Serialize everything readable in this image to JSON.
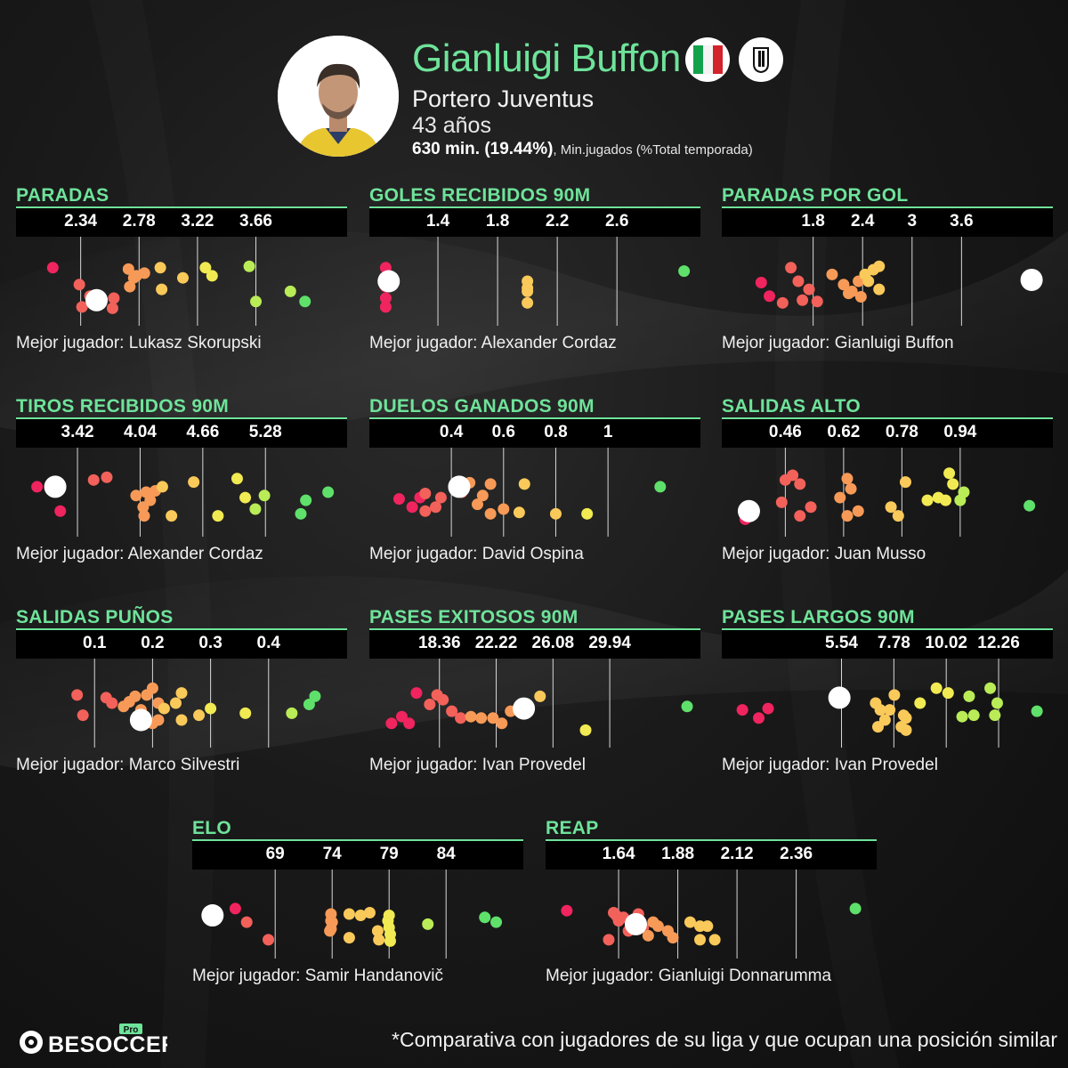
{
  "player": {
    "name": "Gianluigi Buffon",
    "role": "Portero Juventus",
    "age": "43 años",
    "minutes_value": "630 min. (19.44%)",
    "minutes_label": ", Min.jugados (%Total temporada)",
    "nation_icon": "italy-flag-icon",
    "club_icon": "juventus-crest-icon"
  },
  "colors": {
    "accent": "#6ee39a",
    "highlight": "#ffffff",
    "scale": [
      "#f0245e",
      "#f2615a",
      "#f79a57",
      "#f9c95a",
      "#f1ea52",
      "#b9ec56",
      "#5fe06b"
    ]
  },
  "brand": {
    "logo_text": "BESOCCER",
    "logo_tag": "Pro"
  },
  "footnote": "*Comparativa con jugadores de su liga y que ocupan una posición similar",
  "chart_data": [
    {
      "type": "scatter",
      "title": "PARADAS",
      "ticks": [
        "2.34",
        "2.78",
        "3.22",
        "3.66"
      ],
      "tick_values": [
        2.34,
        2.78,
        3.22,
        3.66
      ],
      "xlim": [
        1.92,
        4.28
      ],
      "best_label": "Mejor jugador: Lukasz Skorupski",
      "points": [
        {
          "x": 2.13,
          "y": 0.3
        },
        {
          "x": 2.35,
          "y": 0.88
        },
        {
          "x": 2.33,
          "y": 0.55
        },
        {
          "x": 2.41,
          "y": 0.72
        },
        {
          "x": 2.59,
          "y": 0.75
        },
        {
          "x": 2.58,
          "y": 0.9
        },
        {
          "x": 2.7,
          "y": 0.32
        },
        {
          "x": 2.71,
          "y": 0.58
        },
        {
          "x": 2.76,
          "y": 0.42
        },
        {
          "x": 2.82,
          "y": 0.38
        },
        {
          "x": 2.74,
          "y": 0.45
        },
        {
          "x": 2.94,
          "y": 0.3
        },
        {
          "x": 2.95,
          "y": 0.62
        },
        {
          "x": 3.11,
          "y": 0.45
        },
        {
          "x": 3.28,
          "y": 0.3
        },
        {
          "x": 3.33,
          "y": 0.42
        },
        {
          "x": 3.61,
          "y": 0.28
        },
        {
          "x": 3.66,
          "y": 0.8
        },
        {
          "x": 3.92,
          "y": 0.65
        },
        {
          "x": 4.03,
          "y": 0.8
        }
      ],
      "highlight": {
        "x": 2.46,
        "y": 0.78
      }
    },
    {
      "type": "scatter",
      "title": "GOLES RECIBIDOS 90M",
      "ticks": [
        "1.4",
        "1.8",
        "2.2",
        "2.6"
      ],
      "tick_values": [
        1.4,
        1.8,
        2.2,
        2.6
      ],
      "xlim": [
        1.0,
        3.1
      ],
      "best_label": "Mejor jugador: Alexander Cordaz",
      "points": [
        {
          "x": 1.05,
          "y": 0.3
        },
        {
          "x": 1.05,
          "y": 0.45
        },
        {
          "x": 1.05,
          "y": 0.58
        },
        {
          "x": 1.05,
          "y": 0.75
        },
        {
          "x": 1.05,
          "y": 0.88
        },
        {
          "x": 2.0,
          "y": 0.5
        },
        {
          "x": 2.0,
          "y": 0.65
        },
        {
          "x": 2.0,
          "y": 0.82
        },
        {
          "x": 2.0,
          "y": 0.6
        },
        {
          "x": 3.05,
          "y": 0.35
        }
      ],
      "highlight": {
        "x": 1.07,
        "y": 0.5
      }
    },
    {
      "type": "scatter",
      "title": "PARADAS POR GOL",
      "ticks": [
        "1.8",
        "2.4",
        "3",
        "3.6"
      ],
      "tick_values": [
        1.8,
        2.4,
        3.0,
        3.6
      ],
      "xlim": [
        0.8,
        4.6
      ],
      "best_label": "Mejor jugador: Gianluigi Buffon",
      "points": [
        {
          "x": 1.17,
          "y": 0.52
        },
        {
          "x": 1.27,
          "y": 0.72
        },
        {
          "x": 1.43,
          "y": 0.82
        },
        {
          "x": 1.53,
          "y": 0.3
        },
        {
          "x": 1.62,
          "y": 0.5
        },
        {
          "x": 1.67,
          "y": 0.78
        },
        {
          "x": 1.75,
          "y": 0.62
        },
        {
          "x": 1.85,
          "y": 0.8
        },
        {
          "x": 2.03,
          "y": 0.4
        },
        {
          "x": 2.17,
          "y": 0.55
        },
        {
          "x": 2.23,
          "y": 0.68
        },
        {
          "x": 2.27,
          "y": 0.65
        },
        {
          "x": 2.35,
          "y": 0.5
        },
        {
          "x": 2.38,
          "y": 0.73
        },
        {
          "x": 2.43,
          "y": 0.4
        },
        {
          "x": 2.47,
          "y": 0.5
        },
        {
          "x": 2.53,
          "y": 0.33
        },
        {
          "x": 2.6,
          "y": 0.28
        },
        {
          "x": 2.6,
          "y": 0.62
        }
      ],
      "highlight": {
        "x": 4.45,
        "y": 0.48
      }
    },
    {
      "type": "scatter",
      "title": "TIROS RECIBIDOS 90M",
      "ticks": [
        "3.42",
        "4.04",
        "4.66",
        "5.28"
      ],
      "tick_values": [
        3.42,
        4.04,
        4.66,
        5.28
      ],
      "xlim": [
        2.9,
        6.0
      ],
      "best_label": "Mejor jugador: Alexander Cordaz",
      "points": [
        {
          "x": 3.02,
          "y": 0.42
        },
        {
          "x": 3.22,
          "y": 0.4
        },
        {
          "x": 3.25,
          "y": 0.78
        },
        {
          "x": 3.58,
          "y": 0.32
        },
        {
          "x": 3.71,
          "y": 0.28
        },
        {
          "x": 4.0,
          "y": 0.55
        },
        {
          "x": 4.07,
          "y": 0.72
        },
        {
          "x": 4.1,
          "y": 0.5
        },
        {
          "x": 4.14,
          "y": 0.62
        },
        {
          "x": 4.08,
          "y": 0.85
        },
        {
          "x": 4.19,
          "y": 0.48
        },
        {
          "x": 4.26,
          "y": 0.42
        },
        {
          "x": 4.35,
          "y": 0.85
        },
        {
          "x": 4.57,
          "y": 0.35
        },
        {
          "x": 4.81,
          "y": 0.85
        },
        {
          "x": 5.0,
          "y": 0.3
        },
        {
          "x": 5.08,
          "y": 0.58
        },
        {
          "x": 5.18,
          "y": 0.75
        },
        {
          "x": 5.27,
          "y": 0.55
        },
        {
          "x": 5.68,
          "y": 0.62
        },
        {
          "x": 5.63,
          "y": 0.82
        },
        {
          "x": 5.9,
          "y": 0.5
        }
      ],
      "highlight": {
        "x": 3.2,
        "y": 0.42
      }
    },
    {
      "type": "scatter",
      "title": "DUELOS GANADOS 90M",
      "ticks": [
        "0.4",
        "0.6",
        "0.8",
        "1"
      ],
      "tick_values": [
        0.4,
        0.6,
        0.8,
        1.0
      ],
      "xlim": [
        0.12,
        1.32
      ],
      "best_label": "Mejor jugador: David Ospina",
      "points": [
        {
          "x": 0.2,
          "y": 0.6
        },
        {
          "x": 0.25,
          "y": 0.72
        },
        {
          "x": 0.28,
          "y": 0.58
        },
        {
          "x": 0.3,
          "y": 0.78
        },
        {
          "x": 0.3,
          "y": 0.52
        },
        {
          "x": 0.34,
          "y": 0.72
        },
        {
          "x": 0.36,
          "y": 0.58
        },
        {
          "x": 0.44,
          "y": 0.5
        },
        {
          "x": 0.47,
          "y": 0.36
        },
        {
          "x": 0.5,
          "y": 0.68
        },
        {
          "x": 0.52,
          "y": 0.55
        },
        {
          "x": 0.55,
          "y": 0.82
        },
        {
          "x": 0.6,
          "y": 0.75
        },
        {
          "x": 0.55,
          "y": 0.38
        },
        {
          "x": 0.66,
          "y": 0.8
        },
        {
          "x": 0.68,
          "y": 0.38
        },
        {
          "x": 0.8,
          "y": 0.82
        },
        {
          "x": 0.92,
          "y": 0.82
        },
        {
          "x": 1.2,
          "y": 0.42
        }
      ],
      "highlight": {
        "x": 0.43,
        "y": 0.42
      }
    },
    {
      "type": "scatter",
      "title": "SALIDAS ALTO",
      "ticks": [
        "0.46",
        "0.62",
        "0.78",
        "0.94"
      ],
      "tick_values": [
        0.46,
        0.62,
        0.78,
        0.94
      ],
      "xlim": [
        0.31,
        1.17
      ],
      "best_label": "Mejor jugador: Juan Musso",
      "points": [
        {
          "x": 0.35,
          "y": 0.9
        },
        {
          "x": 0.46,
          "y": 0.32
        },
        {
          "x": 0.48,
          "y": 0.25
        },
        {
          "x": 0.5,
          "y": 0.38
        },
        {
          "x": 0.45,
          "y": 0.65
        },
        {
          "x": 0.5,
          "y": 0.85
        },
        {
          "x": 0.53,
          "y": 0.72
        },
        {
          "x": 0.63,
          "y": 0.3
        },
        {
          "x": 0.61,
          "y": 0.58
        },
        {
          "x": 0.64,
          "y": 0.45
        },
        {
          "x": 0.63,
          "y": 0.85
        },
        {
          "x": 0.66,
          "y": 0.78
        },
        {
          "x": 0.75,
          "y": 0.72
        },
        {
          "x": 0.77,
          "y": 0.85
        },
        {
          "x": 0.79,
          "y": 0.35
        },
        {
          "x": 0.85,
          "y": 0.62
        },
        {
          "x": 0.88,
          "y": 0.58
        },
        {
          "x": 0.9,
          "y": 0.62
        },
        {
          "x": 0.91,
          "y": 0.22
        },
        {
          "x": 0.92,
          "y": 0.38
        },
        {
          "x": 0.94,
          "y": 0.62
        },
        {
          "x": 0.95,
          "y": 0.5
        },
        {
          "x": 1.13,
          "y": 0.7
        }
      ],
      "highlight": {
        "x": 0.36,
        "y": 0.78
      }
    },
    {
      "type": "scatter",
      "title": "SALIDAS PUÑOS",
      "ticks": [
        "0.1",
        "0.2",
        "0.3",
        "0.4"
      ],
      "tick_values": [
        0.1,
        0.2,
        0.3,
        0.4
      ],
      "xlim": [
        -0.02,
        0.52
      ],
      "best_label": "Mejor jugador: Marco Silvestri",
      "points": [
        {
          "x": 0.07,
          "y": 0.38
        },
        {
          "x": 0.08,
          "y": 0.68
        },
        {
          "x": 0.12,
          "y": 0.42
        },
        {
          "x": 0.13,
          "y": 0.5
        },
        {
          "x": 0.15,
          "y": 0.55
        },
        {
          "x": 0.16,
          "y": 0.48
        },
        {
          "x": 0.17,
          "y": 0.4
        },
        {
          "x": 0.18,
          "y": 0.6
        },
        {
          "x": 0.19,
          "y": 0.38
        },
        {
          "x": 0.2,
          "y": 0.8
        },
        {
          "x": 0.21,
          "y": 0.75
        },
        {
          "x": 0.2,
          "y": 0.28
        },
        {
          "x": 0.21,
          "y": 0.5
        },
        {
          "x": 0.22,
          "y": 0.58
        },
        {
          "x": 0.24,
          "y": 0.5
        },
        {
          "x": 0.25,
          "y": 0.75
        },
        {
          "x": 0.25,
          "y": 0.35
        },
        {
          "x": 0.28,
          "y": 0.68
        },
        {
          "x": 0.3,
          "y": 0.58
        },
        {
          "x": 0.36,
          "y": 0.65
        },
        {
          "x": 0.44,
          "y": 0.65
        },
        {
          "x": 0.47,
          "y": 0.52
        },
        {
          "x": 0.48,
          "y": 0.4
        }
      ],
      "highlight": {
        "x": 0.18,
        "y": 0.75
      }
    },
    {
      "type": "scatter",
      "title": "PASES EXITOSOS 90M",
      "ticks": [
        "18.36",
        "22.22",
        "26.08",
        "29.94"
      ],
      "tick_values": [
        18.36,
        22.22,
        26.08,
        29.94
      ],
      "xlim": [
        14.2,
        35.5
      ],
      "best_label": "Mejor jugador: Ivan Provedel",
      "points": [
        {
          "x": 15.1,
          "y": 0.8
        },
        {
          "x": 15.8,
          "y": 0.7
        },
        {
          "x": 16.3,
          "y": 0.8
        },
        {
          "x": 16.8,
          "y": 0.35
        },
        {
          "x": 17.7,
          "y": 0.52
        },
        {
          "x": 18.2,
          "y": 0.38
        },
        {
          "x": 18.6,
          "y": 0.45
        },
        {
          "x": 19.2,
          "y": 0.62
        },
        {
          "x": 19.8,
          "y": 0.72
        },
        {
          "x": 20.5,
          "y": 0.7
        },
        {
          "x": 21.2,
          "y": 0.72
        },
        {
          "x": 22.0,
          "y": 0.72
        },
        {
          "x": 22.6,
          "y": 0.8
        },
        {
          "x": 23.2,
          "y": 0.62
        },
        {
          "x": 24.3,
          "y": 0.62
        },
        {
          "x": 25.2,
          "y": 0.4
        },
        {
          "x": 28.3,
          "y": 0.9
        },
        {
          "x": 35.2,
          "y": 0.55
        }
      ],
      "highlight": {
        "x": 24.1,
        "y": 0.58
      }
    },
    {
      "type": "scatter",
      "title": "PASES LARGOS 90M",
      "ticks": [
        "5.54",
        "7.78",
        "10.02",
        "12.26"
      ],
      "tick_values": [
        5.54,
        7.78,
        10.02,
        12.26
      ],
      "xlim": [
        0.8,
        14.2
      ],
      "best_label": "Mejor jugador: Ivan Provedel",
      "points": [
        {
          "x": 1.3,
          "y": 0.6
        },
        {
          "x": 2.0,
          "y": 0.72
        },
        {
          "x": 2.4,
          "y": 0.58
        },
        {
          "x": 7.0,
          "y": 0.5
        },
        {
          "x": 7.2,
          "y": 0.6
        },
        {
          "x": 7.4,
          "y": 0.75
        },
        {
          "x": 7.1,
          "y": 0.85
        },
        {
          "x": 7.8,
          "y": 0.38
        },
        {
          "x": 7.6,
          "y": 0.6
        },
        {
          "x": 8.1,
          "y": 0.85
        },
        {
          "x": 8.2,
          "y": 0.68
        },
        {
          "x": 8.3,
          "y": 0.72
        },
        {
          "x": 8.3,
          "y": 0.9
        },
        {
          "x": 8.9,
          "y": 0.5
        },
        {
          "x": 9.6,
          "y": 0.28
        },
        {
          "x": 10.1,
          "y": 0.35
        },
        {
          "x": 10.7,
          "y": 0.7
        },
        {
          "x": 11.0,
          "y": 0.4
        },
        {
          "x": 11.2,
          "y": 0.68
        },
        {
          "x": 11.9,
          "y": 0.28
        },
        {
          "x": 12.2,
          "y": 0.5
        },
        {
          "x": 13.9,
          "y": 0.62
        },
        {
          "x": 12.1,
          "y": 0.68
        }
      ],
      "highlight": {
        "x": 5.45,
        "y": 0.42
      }
    },
    {
      "type": "scatter",
      "title": "ELO",
      "ticks": [
        "69",
        "74",
        "79",
        "84"
      ],
      "tick_values": [
        69,
        74,
        79,
        84
      ],
      "xlim": [
        62.5,
        90
      ],
      "best_label": "Mejor jugador: Samir Handanovič",
      "points": [
        {
          "x": 65.5,
          "y": 0.42
        },
        {
          "x": 66.5,
          "y": 0.62
        },
        {
          "x": 68.4,
          "y": 0.88
        },
        {
          "x": 73.9,
          "y": 0.5
        },
        {
          "x": 73.9,
          "y": 0.6
        },
        {
          "x": 73.9,
          "y": 0.72
        },
        {
          "x": 73.8,
          "y": 0.75
        },
        {
          "x": 74.0,
          "y": 0.62
        },
        {
          "x": 75.5,
          "y": 0.5
        },
        {
          "x": 76.5,
          "y": 0.52
        },
        {
          "x": 77.3,
          "y": 0.48
        },
        {
          "x": 75.5,
          "y": 0.85
        },
        {
          "x": 78.0,
          "y": 0.75
        },
        {
          "x": 78.1,
          "y": 0.88
        },
        {
          "x": 78.9,
          "y": 0.6
        },
        {
          "x": 79.0,
          "y": 0.7
        },
        {
          "x": 79.1,
          "y": 0.8
        },
        {
          "x": 79.1,
          "y": 0.9
        },
        {
          "x": 79.0,
          "y": 0.52
        },
        {
          "x": 82.4,
          "y": 0.65
        },
        {
          "x": 87.4,
          "y": 0.55
        },
        {
          "x": 88.4,
          "y": 0.62
        }
      ],
      "highlight": {
        "x": 63.5,
        "y": 0.52
      }
    },
    {
      "type": "scatter",
      "title": "REAP",
      "ticks": [
        "1.64",
        "1.88",
        "2.12",
        "2.36"
      ],
      "tick_values": [
        1.64,
        1.88,
        2.12,
        2.36
      ],
      "xlim": [
        1.38,
        2.65
      ],
      "best_label": "Mejor jugador: Gianluigi Donnarumma",
      "points": [
        {
          "x": 1.43,
          "y": 0.45
        },
        {
          "x": 1.62,
          "y": 0.48
        },
        {
          "x": 1.63,
          "y": 0.52
        },
        {
          "x": 1.6,
          "y": 0.88
        },
        {
          "x": 1.64,
          "y": 0.6
        },
        {
          "x": 1.66,
          "y": 0.55
        },
        {
          "x": 1.68,
          "y": 0.75
        },
        {
          "x": 1.7,
          "y": 0.62
        },
        {
          "x": 1.72,
          "y": 0.5
        },
        {
          "x": 1.74,
          "y": 0.7
        },
        {
          "x": 1.76,
          "y": 0.82
        },
        {
          "x": 1.78,
          "y": 0.62
        },
        {
          "x": 1.8,
          "y": 0.68
        },
        {
          "x": 1.84,
          "y": 0.75
        },
        {
          "x": 1.86,
          "y": 0.85
        },
        {
          "x": 1.93,
          "y": 0.62
        },
        {
          "x": 1.97,
          "y": 0.68
        },
        {
          "x": 1.97,
          "y": 0.88
        },
        {
          "x": 2.0,
          "y": 0.68
        },
        {
          "x": 2.03,
          "y": 0.88
        },
        {
          "x": 2.6,
          "y": 0.42
        }
      ],
      "highlight": {
        "x": 1.71,
        "y": 0.65
      }
    }
  ]
}
